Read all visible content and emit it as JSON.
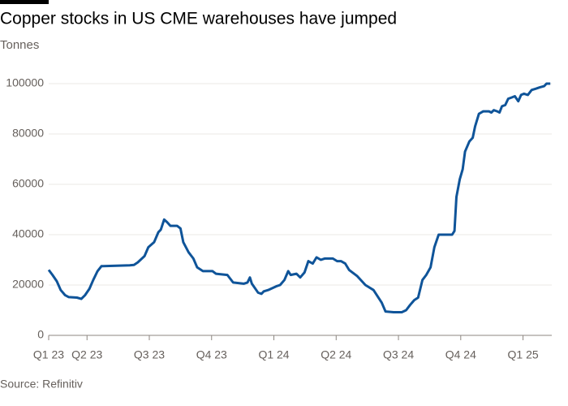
{
  "chart_data": {
    "type": "line",
    "title": "Copper stocks in US CME warehouses have jumped",
    "subtitle": "Tonnes",
    "source": "Source: Refinitiv",
    "x": [
      0,
      0.8,
      1.7,
      2.5,
      3.4,
      4.2,
      5.9,
      6.8,
      7.6,
      8.5,
      9.3,
      10.2,
      11.0,
      16.9,
      17.8,
      18.6,
      20.0,
      20.8,
      22.0,
      22.9,
      23.4,
      24.1,
      24.7,
      25.4,
      26.8,
      27.5,
      28.1,
      29.2,
      30.2,
      31.0,
      32.2,
      34.2,
      34.9,
      37.3,
      38.5,
      40.7,
      41.5,
      42.0,
      42.4,
      43.7,
      44.4,
      44.9,
      45.8,
      47.5,
      48.3,
      49.2,
      50.0,
      50.5,
      51.7,
      52.5,
      53.4,
      54.2,
      55.1,
      55.9,
      56.8,
      57.6,
      59.3,
      60.2,
      61.0,
      61.9,
      62.7,
      64.4,
      66.1,
      67.8,
      69.5,
      70.3,
      72.0,
      73.7,
      74.6,
      75.4,
      76.3,
      77.1,
      78.0,
      78.8,
      79.7,
      80.5,
      81.4,
      84.2,
      84.7,
      85.1,
      85.8,
      86.4,
      86.9,
      87.8,
      88.5,
      89.0,
      89.8,
      90.7,
      91.9,
      92.4,
      92.9,
      93.6,
      94.1,
      94.6,
      95.3,
      95.9,
      96.6,
      97.3,
      98.0,
      98.6,
      99.2,
      100.0,
      100.8,
      101.7,
      102.5,
      103.4,
      103.9,
      104.7
    ],
    "series": [
      {
        "color": "#0f5499",
        "values": [
          26000,
          24000,
          21500,
          18000,
          16000,
          15200,
          15000,
          14500,
          16000,
          18500,
          22000,
          25500,
          27500,
          27800,
          28000,
          29000,
          31500,
          35000,
          37000,
          41000,
          42000,
          46000,
          45000,
          43500,
          43500,
          42500,
          37000,
          33000,
          30500,
          27000,
          25500,
          25500,
          24500,
          24000,
          21000,
          20500,
          21000,
          23000,
          20500,
          17000,
          16500,
          17500,
          18000,
          19500,
          20000,
          22000,
          25500,
          24000,
          24500,
          23000,
          25000,
          29500,
          28500,
          31000,
          30000,
          30500,
          30500,
          29500,
          29500,
          28500,
          26000,
          23500,
          20000,
          18000,
          13000,
          9500,
          9200,
          9200,
          10000,
          12000,
          14000,
          15000,
          22000,
          24000,
          27000,
          35000,
          40000,
          40000,
          41500,
          55000,
          62000,
          66000,
          73000,
          77000,
          78500,
          83000,
          88000,
          89000,
          89000,
          88500,
          89500,
          89000,
          88500,
          91000,
          91500,
          94000,
          94500,
          95000,
          93000,
          95500,
          96000,
          95500,
          97500,
          98000,
          98500,
          99000,
          100000,
          100000
        ]
      }
    ],
    "xlim": [
      0,
      105
    ],
    "xticks": [
      {
        "value": 0,
        "label": "Q1 23"
      },
      {
        "value": 8,
        "label": "Q2 23"
      },
      {
        "value": 21,
        "label": "Q3 23"
      },
      {
        "value": 34,
        "label": "Q4 23"
      },
      {
        "value": 47,
        "label": "Q1 24"
      },
      {
        "value": 60,
        "label": "Q2 24"
      },
      {
        "value": 73,
        "label": "Q3 24"
      },
      {
        "value": 86,
        "label": "Q4 24"
      },
      {
        "value": 99,
        "label": "Q1 25"
      }
    ],
    "ylim": [
      0,
      100000
    ],
    "yticks": [
      0,
      20000,
      40000,
      60000,
      80000,
      100000
    ],
    "grid": true
  }
}
